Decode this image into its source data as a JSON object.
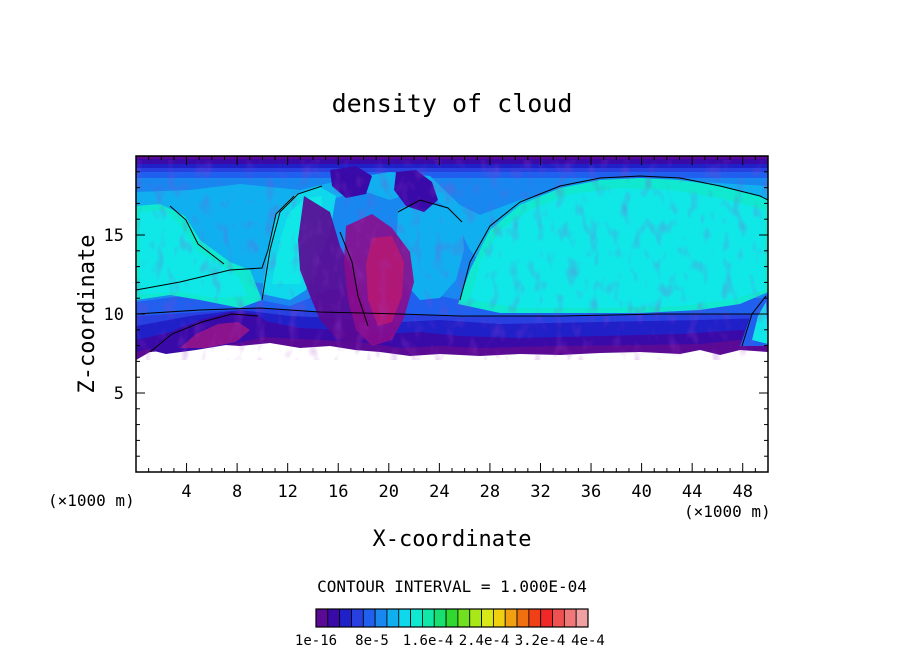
{
  "chart_data": {
    "type": "heatmap",
    "title": "density of cloud",
    "xlabel": "X-coordinate",
    "ylabel": "Z-coordinate",
    "x_unit_label": "(×1000 m)",
    "y_unit_label": "(×1000 m)",
    "xlim": [
      0,
      50
    ],
    "ylim": [
      0,
      20
    ],
    "x_ticks": [
      4,
      8,
      12,
      16,
      20,
      24,
      28,
      32,
      36,
      40,
      44,
      48
    ],
    "y_ticks": [
      5,
      10,
      15
    ],
    "x_tick_labels": [
      "4",
      "8",
      "12",
      "16",
      "20",
      "24",
      "28",
      "32",
      "36",
      "40",
      "44",
      "48"
    ],
    "y_tick_labels": [
      "5",
      "10",
      "15"
    ],
    "contour_interval_text": "CONTOUR INTERVAL = 1.000E-04",
    "colorbar_labels": [
      "1e-16",
      "8e-5",
      "1.6e-4",
      "2.4e-4",
      "3.2e-4",
      "4e-4"
    ],
    "colorbar_colors": [
      "#5a0a94",
      "#3a0aa8",
      "#2020c8",
      "#2840e0",
      "#2060ee",
      "#1888f0",
      "#10b0f0",
      "#10d8ec",
      "#10e8d0",
      "#10e8a8",
      "#18e070",
      "#30d830",
      "#70e020",
      "#a8e818",
      "#d8e818",
      "#f0d010",
      "#f0a010",
      "#f07010",
      "#f04018",
      "#f02828",
      "#f05050",
      "#f07878",
      "#f0a0a0"
    ],
    "cloud_layer": {
      "bottom_km": 7.2,
      "top_km": 19.8,
      "mid_contour_km": 10,
      "upper_contour_km": 18.3
    }
  }
}
